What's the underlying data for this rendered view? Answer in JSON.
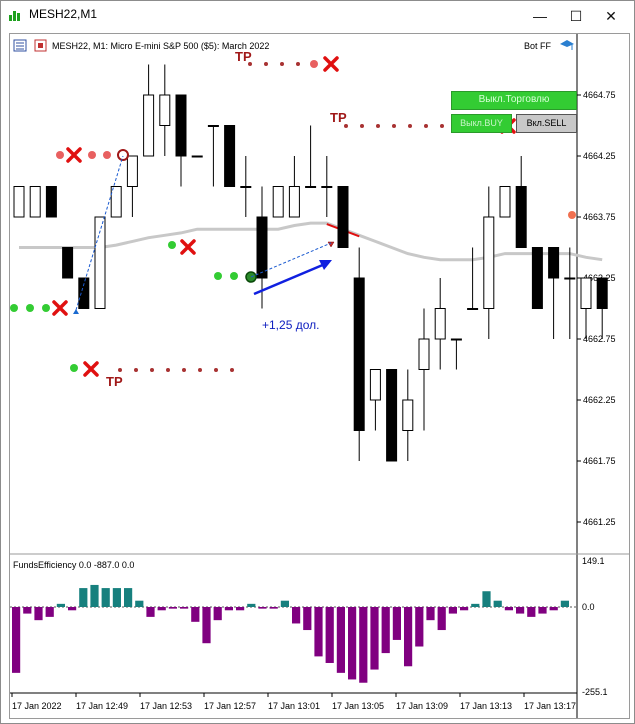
{
  "window": {
    "title": "MESH22,M1"
  },
  "chart_header": {
    "text": "MESH22, M1:  Micro E-mini S&P 500 ($5): March 2022",
    "ea_name": "Bot FF"
  },
  "buttons": {
    "trade": "Выкл.Торговлю",
    "buy": "Выкл.BUY",
    "sell": "Вкл.SELL"
  },
  "annotations": {
    "tp": "TP",
    "profit": "+1,25 дол."
  },
  "indicator": {
    "label": "FundsEfficiency 0.0 -887.0 0.0",
    "scale_labels": [
      "149.1",
      "0.0",
      "-255.1"
    ]
  },
  "chart_data": [
    {
      "type": "candlestick",
      "price_labels": [
        "4664.75",
        "4664.25",
        "4663.75",
        "4663.25",
        "4662.75",
        "4662.25",
        "4661.75",
        "4661.25"
      ],
      "candles": [
        {
          "o": 4663.75,
          "h": 4664.0,
          "l": 4663.75,
          "c": 4664.0
        },
        {
          "o": 4663.75,
          "h": 4664.0,
          "l": 4663.75,
          "c": 4664.0
        },
        {
          "o": 4664.0,
          "h": 4664.0,
          "l": 4663.75,
          "c": 4663.75
        },
        {
          "o": 4663.5,
          "h": 4663.5,
          "l": 4663.25,
          "c": 4663.25
        },
        {
          "o": 4663.25,
          "h": 4663.25,
          "l": 4663.0,
          "c": 4663.0
        },
        {
          "o": 4663.0,
          "h": 4663.75,
          "l": 4663.0,
          "c": 4663.75
        },
        {
          "o": 4663.75,
          "h": 4664.0,
          "l": 4663.75,
          "c": 4664.0
        },
        {
          "o": 4664.0,
          "h": 4664.25,
          "l": 4663.75,
          "c": 4664.25
        },
        {
          "o": 4664.25,
          "h": 4665.0,
          "l": 4664.25,
          "c": 4664.75
        },
        {
          "o": 4664.5,
          "h": 4665.0,
          "l": 4664.25,
          "c": 4664.75
        },
        {
          "o": 4664.75,
          "h": 4664.75,
          "l": 4664.0,
          "c": 4664.25
        },
        {
          "o": 4664.25,
          "h": 4664.25,
          "l": 4664.25,
          "c": 4664.25
        },
        {
          "o": 4664.5,
          "h": 4664.5,
          "l": 4664.0,
          "c": 4664.5
        },
        {
          "o": 4664.5,
          "h": 4664.5,
          "l": 4664.0,
          "c": 4664.0
        },
        {
          "o": 4664.0,
          "h": 4664.25,
          "l": 4663.75,
          "c": 4664.0
        },
        {
          "o": 4663.75,
          "h": 4664.0,
          "l": 4663.0,
          "c": 4663.25
        },
        {
          "o": 4663.75,
          "h": 4664.0,
          "l": 4663.75,
          "c": 4664.0
        },
        {
          "o": 4663.75,
          "h": 4664.25,
          "l": 4663.75,
          "c": 4664.0
        },
        {
          "o": 4664.0,
          "h": 4664.5,
          "l": 4664.0,
          "c": 4664.0
        },
        {
          "o": 4664.0,
          "h": 4664.25,
          "l": 4663.75,
          "c": 4664.0
        },
        {
          "o": 4664.0,
          "h": 4664.0,
          "l": 4663.5,
          "c": 4663.5
        },
        {
          "o": 4663.25,
          "h": 4663.5,
          "l": 4661.75,
          "c": 4662.0
        },
        {
          "o": 4662.25,
          "h": 4662.5,
          "l": 4662.0,
          "c": 4662.5
        },
        {
          "o": 4662.5,
          "h": 4662.5,
          "l": 4661.75,
          "c": 4661.75
        },
        {
          "o": 4662.0,
          "h": 4662.5,
          "l": 4661.75,
          "c": 4662.25
        },
        {
          "o": 4662.5,
          "h": 4663.0,
          "l": 4662.0,
          "c": 4662.75
        },
        {
          "o": 4662.75,
          "h": 4663.25,
          "l": 4662.5,
          "c": 4663.0
        },
        {
          "o": 4662.75,
          "h": 4662.75,
          "l": 4662.5,
          "c": 4662.75
        },
        {
          "o": 4663.0,
          "h": 4663.5,
          "l": 4663.0,
          "c": 4663.0
        },
        {
          "o": 4663.0,
          "h": 4664.0,
          "l": 4662.75,
          "c": 4663.75
        },
        {
          "o": 4663.75,
          "h": 4664.0,
          "l": 4663.75,
          "c": 4664.0
        },
        {
          "o": 4664.0,
          "h": 4664.25,
          "l": 4663.5,
          "c": 4663.5
        },
        {
          "o": 4663.5,
          "h": 4663.5,
          "l": 4663.0,
          "c": 4663.0
        },
        {
          "o": 4663.5,
          "h": 4663.5,
          "l": 4662.75,
          "c": 4663.25
        },
        {
          "o": 4663.25,
          "h": 4663.5,
          "l": 4662.75,
          "c": 4663.25
        },
        {
          "o": 4663.0,
          "h": 4663.25,
          "l": 4662.75,
          "c": 4663.25
        },
        {
          "o": 4663.25,
          "h": 4663.25,
          "l": 4662.75,
          "c": 4663.0
        }
      ],
      "moving_average": [
        4663.5,
        4663.5,
        4663.5,
        4663.5,
        4663.5,
        4663.5,
        4663.52,
        4663.55,
        4663.58,
        4663.6,
        4663.62,
        4663.65,
        4663.65,
        4663.65,
        4663.65,
        4663.65,
        4663.65,
        4663.68,
        4663.7,
        4663.7,
        4663.65,
        4663.6,
        4663.55,
        4663.5,
        4663.45,
        4663.42,
        4663.4,
        4663.4,
        4663.4,
        4663.42,
        4663.45,
        4663.45,
        4663.45,
        4663.45,
        4663.45,
        4663.42,
        4663.4
      ]
    },
    {
      "type": "bar",
      "name": "FundsEfficiency",
      "ylim": [
        -255.1,
        149.1
      ],
      "values": [
        -200,
        -20,
        -40,
        -30,
        10,
        -10,
        60,
        70,
        60,
        60,
        60,
        20,
        -30,
        -10,
        -5,
        -5,
        -45,
        -110,
        -40,
        -10,
        -10,
        10,
        -5,
        -5,
        20,
        -50,
        -70,
        -150,
        -170,
        -200,
        -220,
        -230,
        -190,
        -140,
        -100,
        -180,
        -120,
        -40,
        -70,
        -20,
        -10,
        10,
        50,
        20,
        -10,
        -20,
        -30,
        -20,
        -10,
        20
      ]
    },
    {
      "type": "axis",
      "time_labels": [
        "17 Jan 2022",
        "17 Jan 12:49",
        "17 Jan 12:53",
        "17 Jan 12:57",
        "17 Jan 13:01",
        "17 Jan 13:05",
        "17 Jan 13:09",
        "17 Jan 13:13",
        "17 Jan 13:17"
      ]
    }
  ],
  "colors": {
    "bull_body": "#ffffff",
    "bear_body": "#000000",
    "ma": "#c8c8c8",
    "bar_positive": "#17807e",
    "bar_negative": "#800080",
    "tp_dot": "#a83232",
    "x_mark": "#e01010",
    "green_dot": "#33cc33",
    "arrow": "#1020e0"
  }
}
